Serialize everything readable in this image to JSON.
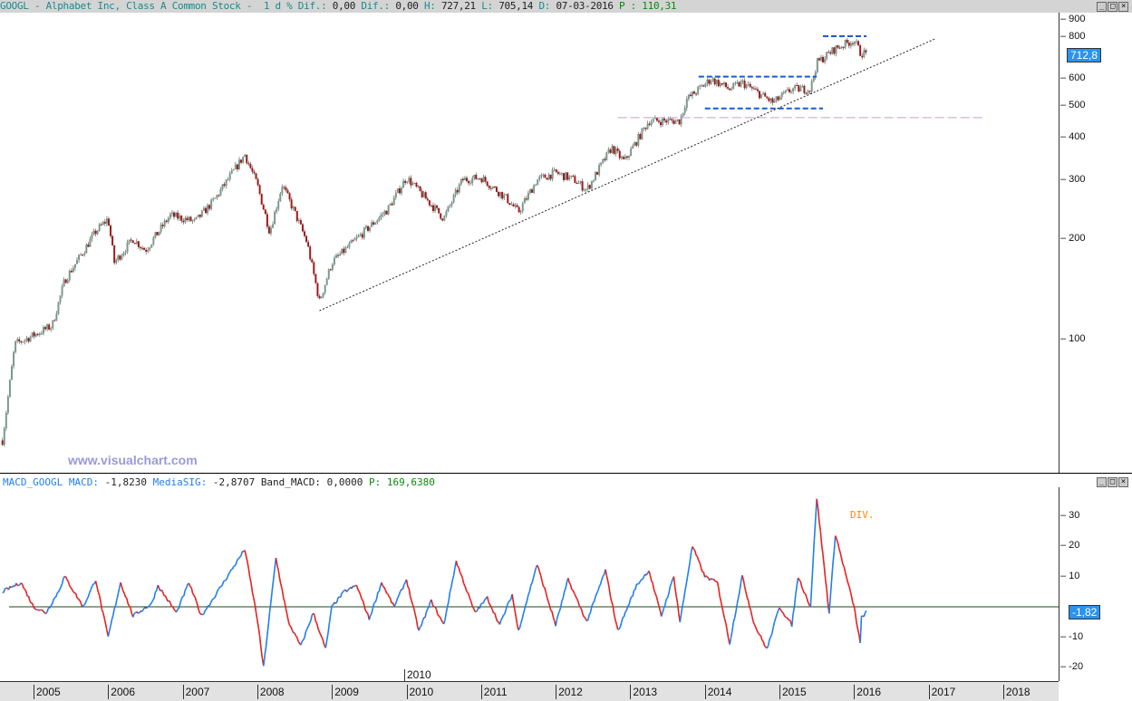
{
  "header": {
    "symbol": "GOOGL",
    "name": "Alphabet Inc, Class A Common Stock",
    "period": "1 d",
    "pct_dif_label": "% Dif.:",
    "pct_dif": "0,00",
    "dif_label": "Dif.:",
    "dif": "0,00",
    "high_label": "H:",
    "high": "727,21",
    "low_label": "L:",
    "low": "705,14",
    "date_label": "D:",
    "date": "07-03-2016",
    "p_label": "P :",
    "p": "110,31"
  },
  "price_axis": {
    "ticks": [
      "900",
      "800",
      "600",
      "500",
      "400",
      "300",
      "200",
      "100"
    ],
    "last": "712,8",
    "scale": "log"
  },
  "watermark": "www.visualchart.com",
  "macd_header": {
    "name": "MACD_GOOGL",
    "macd_label": "MACD:",
    "macd": "-1,8230",
    "sig_label": "MediaSIG:",
    "sig": "-2,8707",
    "band_label": "Band_MACD:",
    "band": "0,0000",
    "p_label": "P:",
    "p": "169,6380"
  },
  "macd_axis": {
    "ticks": [
      "30",
      "20",
      "10",
      "-10",
      "-20"
    ],
    "last": "-1,82"
  },
  "annotation_div": "DIV.",
  "x_axis": {
    "labels": [
      "2005",
      "2006",
      "2007",
      "2008",
      "2009",
      "2010",
      "2011",
      "2012",
      "2013",
      "2014",
      "2015",
      "2016",
      "2017",
      "2018"
    ],
    "marker": "2010"
  },
  "colors": {
    "up": "#7a9a8a",
    "down": "#a01818",
    "macd_up": "#1e7ff0",
    "macd_down": "#e82020",
    "levels": "#1a5ad0",
    "support": "#c8a0c8"
  },
  "chart_data": [
    {
      "type": "candlestick",
      "scale": "log",
      "ylim": [
        50,
        950
      ],
      "points": [
        [
          "2004-08",
          50
        ],
        [
          "2004-10",
          97
        ],
        [
          "2005-01",
          103
        ],
        [
          "2005-04",
          110
        ],
        [
          "2005-06",
          150
        ],
        [
          "2005-11",
          210
        ],
        [
          "2006-01",
          230
        ],
        [
          "2006-02",
          170
        ],
        [
          "2006-05",
          200
        ],
        [
          "2006-07",
          185
        ],
        [
          "2006-11",
          235
        ],
        [
          "2007-03",
          225
        ],
        [
          "2007-06",
          260
        ],
        [
          "2007-11",
          357
        ],
        [
          "2008-01",
          290
        ],
        [
          "2008-03",
          210
        ],
        [
          "2008-05",
          290
        ],
        [
          "2008-07",
          240
        ],
        [
          "2008-09",
          195
        ],
        [
          "2008-11",
          130
        ],
        [
          "2009-01",
          170
        ],
        [
          "2009-05",
          200
        ],
        [
          "2009-10",
          245
        ],
        [
          "2010-01",
          305
        ],
        [
          "2010-04",
          265
        ],
        [
          "2010-07",
          230
        ],
        [
          "2010-10",
          300
        ],
        [
          "2011-01",
          305
        ],
        [
          "2011-05",
          265
        ],
        [
          "2011-07",
          240
        ],
        [
          "2011-10",
          300
        ],
        [
          "2012-01",
          315
        ],
        [
          "2012-04",
          300
        ],
        [
          "2012-06",
          280
        ],
        [
          "2012-10",
          375
        ],
        [
          "2012-12",
          340
        ],
        [
          "2013-04",
          450
        ],
        [
          "2013-09",
          450
        ],
        [
          "2013-10",
          520
        ],
        [
          "2014-02",
          600
        ],
        [
          "2014-05",
          560
        ],
        [
          "2014-07",
          585
        ],
        [
          "2014-12",
          510
        ],
        [
          "2015-03",
          560
        ],
        [
          "2015-06",
          560
        ],
        [
          "2015-07",
          670
        ],
        [
          "2015-10",
          740
        ],
        [
          "2016-01",
          785
        ],
        [
          "2016-02",
          720
        ],
        [
          "2016-03",
          712.8
        ]
      ],
      "levels": [
        {
          "value": 610,
          "from": "2013-12",
          "to": "2015-07",
          "style": "dashed"
        },
        {
          "value": 490,
          "from": "2014-01",
          "to": "2015-08",
          "style": "dashed"
        },
        {
          "value": 805,
          "from": "2015-08",
          "to": "2016-03",
          "style": "dashed"
        },
        {
          "value": 460,
          "from": "2012-11",
          "to": "2017-10",
          "style": "support"
        }
      ],
      "trendline": [
        [
          "2008-11",
          122
        ],
        [
          "2017-02",
          790
        ]
      ]
    },
    {
      "type": "line",
      "name": "MACD",
      "ylim": [
        -22,
        38
      ],
      "zero_line": true,
      "points": [
        [
          "2004-08",
          5
        ],
        [
          "2004-11",
          8
        ],
        [
          "2005-01",
          0
        ],
        [
          "2005-03",
          -2
        ],
        [
          "2005-05",
          5
        ],
        [
          "2005-06",
          10
        ],
        [
          "2005-09",
          0
        ],
        [
          "2005-11",
          9
        ],
        [
          "2006-01",
          -10
        ],
        [
          "2006-03",
          8
        ],
        [
          "2006-05",
          -3
        ],
        [
          "2006-08",
          1
        ],
        [
          "2006-09",
          7
        ],
        [
          "2006-12",
          -2
        ],
        [
          "2007-02",
          8
        ],
        [
          "2007-04",
          -3
        ],
        [
          "2007-06",
          3
        ],
        [
          "2007-11",
          19
        ],
        [
          "2008-01",
          -4
        ],
        [
          "2008-02",
          -20
        ],
        [
          "2008-04",
          16
        ],
        [
          "2008-06",
          -5
        ],
        [
          "2008-08",
          -13
        ],
        [
          "2008-10",
          -2
        ],
        [
          "2008-12",
          -14
        ],
        [
          "2009-01",
          0
        ],
        [
          "2009-03",
          5
        ],
        [
          "2009-05",
          7
        ],
        [
          "2009-07",
          -4
        ],
        [
          "2009-09",
          8
        ],
        [
          "2009-11",
          0
        ],
        [
          "2010-01",
          9
        ],
        [
          "2010-03",
          -8
        ],
        [
          "2010-05",
          2
        ],
        [
          "2010-07",
          -6
        ],
        [
          "2010-09",
          15
        ],
        [
          "2010-12",
          -2
        ],
        [
          "2011-02",
          3
        ],
        [
          "2011-04",
          -6
        ],
        [
          "2011-06",
          4
        ],
        [
          "2011-07",
          -8
        ],
        [
          "2011-10",
          14
        ],
        [
          "2012-01",
          -6
        ],
        [
          "2012-03",
          9
        ],
        [
          "2012-06",
          -5
        ],
        [
          "2012-09",
          12
        ],
        [
          "2012-11",
          -8
        ],
        [
          "2013-02",
          7
        ],
        [
          "2013-04",
          12
        ],
        [
          "2013-06",
          -3
        ],
        [
          "2013-08",
          10
        ],
        [
          "2013-09",
          -5
        ],
        [
          "2013-11",
          20
        ],
        [
          "2014-01",
          10
        ],
        [
          "2014-03",
          8
        ],
        [
          "2014-05",
          -12
        ],
        [
          "2014-07",
          10
        ],
        [
          "2014-09",
          -6
        ],
        [
          "2014-11",
          -14
        ],
        [
          "2015-01",
          0
        ],
        [
          "2015-03",
          -6
        ],
        [
          "2015-04",
          10
        ],
        [
          "2015-06",
          0
        ],
        [
          "2015-07",
          36
        ],
        [
          "2015-09",
          -2
        ],
        [
          "2015-10",
          24
        ],
        [
          "2016-01",
          0
        ],
        [
          "2016-02",
          -12
        ],
        [
          "2016-02",
          -4
        ],
        [
          "2016-03",
          -1.82
        ]
      ]
    }
  ]
}
